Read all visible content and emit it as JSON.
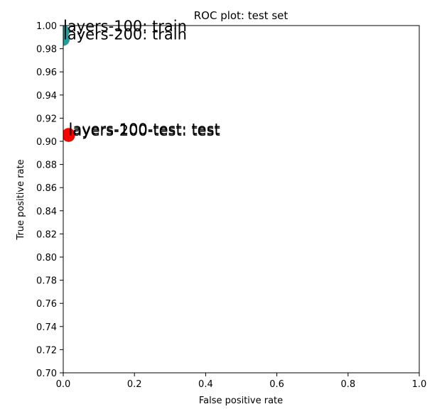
{
  "chart_data": {
    "type": "scatter",
    "title": "ROC plot: test set",
    "xlabel": "False positive rate",
    "ylabel": "True positive rate",
    "xlim": [
      0.0,
      1.0
    ],
    "ylim": [
      0.7,
      1.0
    ],
    "xticks": [
      "0.0",
      "0.2",
      "0.4",
      "0.6",
      "0.8",
      "1.0"
    ],
    "yticks": [
      "0.70",
      "0.72",
      "0.74",
      "0.76",
      "0.78",
      "0.80",
      "0.82",
      "0.84",
      "0.86",
      "0.88",
      "0.90",
      "0.92",
      "0.94",
      "0.96",
      "0.98",
      "1.00"
    ],
    "grid": false,
    "points": [
      {
        "label": "layers-100: train",
        "x": 0.0,
        "y": 0.995,
        "color": "#1f9fa0"
      },
      {
        "label": "layers-200: train",
        "x": 0.0,
        "y": 0.988,
        "color": "#1f9fa0"
      },
      {
        "label": "layers-100-test: test",
        "x": 0.015,
        "y": 0.906,
        "color": "#ff0000"
      },
      {
        "label": "layers-200-test: test",
        "x": 0.015,
        "y": 0.905,
        "color": "#ff0000"
      }
    ]
  }
}
